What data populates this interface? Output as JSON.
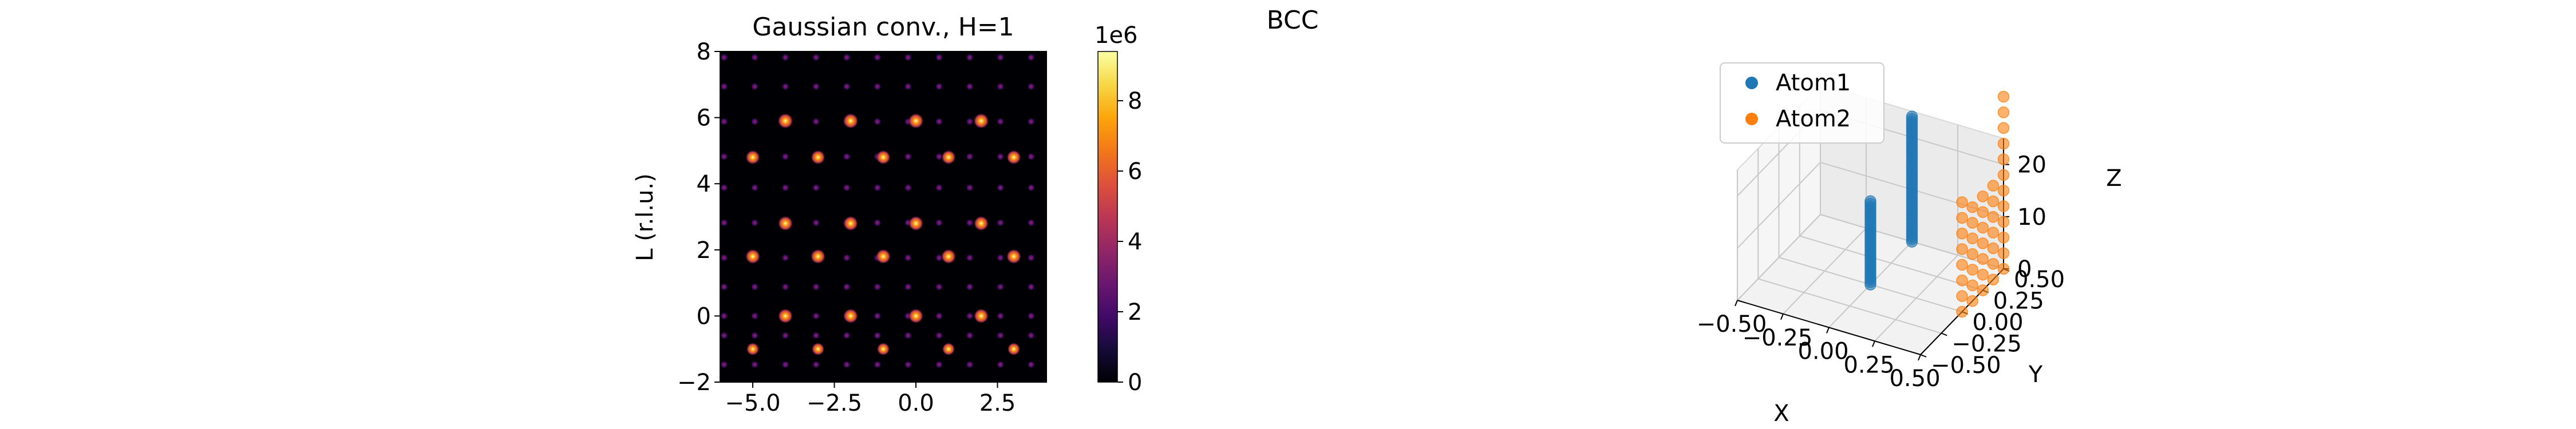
{
  "figure": {
    "suptitle": "BCC"
  },
  "chart_data": [
    {
      "type": "heatmap",
      "title": "Gaussian conv., H=1",
      "xlabel": "",
      "ylabel": "L (r.l.u.)",
      "xlim": [
        -6,
        4
      ],
      "ylim": [
        -2,
        8
      ],
      "xticks": [
        -5.0,
        -2.5,
        0.0,
        2.5
      ],
      "xtick_labels": [
        "−5.0",
        "−2.5",
        "0.0",
        "2.5"
      ],
      "yticks": [
        -2,
        0,
        2,
        4,
        6,
        8
      ],
      "ytick_labels": [
        "−2",
        "0",
        "2",
        "4",
        "6",
        "8"
      ],
      "colormap": "inferno",
      "colorbar": {
        "min": 0,
        "max": 9.4,
        "ticks": [
          0,
          2,
          4,
          6,
          8
        ],
        "tick_labels": [
          "0",
          "2",
          "4",
          "6",
          "8"
        ],
        "offset_label": "1e6"
      },
      "peak_columns_k": [
        -5.88,
        -4.94,
        -4.0,
        -3.06,
        -2.12,
        -1.18,
        -0.24,
        0.71,
        1.65,
        2.59,
        3.53
      ],
      "peak_rows_l": [
        -1.47,
        -0.59,
        0.0,
        0.88,
        1.76,
        2.82,
        3.88,
        4.82,
        5.88,
        6.94,
        7.82
      ],
      "bright_peaks": [
        {
          "x": -4.0,
          "y": 5.9,
          "value": 9.0
        },
        {
          "x": -2.0,
          "y": 5.9,
          "value": 9.0
        },
        {
          "x": 0.0,
          "y": 5.9,
          "value": 9.0
        },
        {
          "x": 2.0,
          "y": 5.9,
          "value": 9.0
        },
        {
          "x": -5.0,
          "y": 4.8,
          "value": 8.0
        },
        {
          "x": -3.0,
          "y": 4.8,
          "value": 8.0
        },
        {
          "x": -1.0,
          "y": 4.8,
          "value": 8.0
        },
        {
          "x": 1.0,
          "y": 4.8,
          "value": 8.0
        },
        {
          "x": 3.0,
          "y": 4.8,
          "value": 8.0
        },
        {
          "x": -4.0,
          "y": 2.8,
          "value": 8.5
        },
        {
          "x": -2.0,
          "y": 2.8,
          "value": 8.5
        },
        {
          "x": 0.0,
          "y": 2.8,
          "value": 8.5
        },
        {
          "x": 2.0,
          "y": 2.8,
          "value": 8.5
        },
        {
          "x": -5.0,
          "y": 1.8,
          "value": 8.5
        },
        {
          "x": -3.0,
          "y": 1.8,
          "value": 8.5
        },
        {
          "x": -1.0,
          "y": 1.8,
          "value": 8.5
        },
        {
          "x": 1.0,
          "y": 1.8,
          "value": 8.5
        },
        {
          "x": 3.0,
          "y": 1.8,
          "value": 8.5
        },
        {
          "x": -4.0,
          "y": 0.0,
          "value": 8.5
        },
        {
          "x": -2.0,
          "y": 0.0,
          "value": 8.5
        },
        {
          "x": 0.0,
          "y": 0.0,
          "value": 8.5
        },
        {
          "x": 2.0,
          "y": 0.0,
          "value": 8.5
        },
        {
          "x": -5.0,
          "y": -1.0,
          "value": 6.5
        },
        {
          "x": -3.0,
          "y": -1.0,
          "value": 6.5
        },
        {
          "x": -1.0,
          "y": -1.0,
          "value": 6.5
        },
        {
          "x": 1.0,
          "y": -1.0,
          "value": 6.5
        },
        {
          "x": 3.0,
          "y": -1.0,
          "value": 6.5
        }
      ]
    },
    {
      "type": "scatter3d",
      "title": "",
      "xlabel": "X",
      "ylabel": "Y",
      "zlabel": "Z",
      "xlim": [
        -0.5,
        0.5
      ],
      "ylim": [
        -0.5,
        0.5
      ],
      "zlim": [
        0,
        25
      ],
      "xticks": [
        -0.5,
        -0.25,
        0.0,
        0.25,
        0.5
      ],
      "xtick_labels": [
        "−0.50",
        "−0.25",
        "0.00",
        "0.25",
        "0.50"
      ],
      "yticks": [
        -0.5,
        -0.25,
        0.0,
        0.25,
        0.5
      ],
      "ytick_labels": [
        "−0.50",
        "−0.25",
        "0.00",
        "0.25",
        "0.50"
      ],
      "zticks": [
        0,
        10,
        20
      ],
      "ztick_labels": [
        "0",
        "10",
        "20"
      ],
      "legend_position": "upper-left",
      "series": [
        {
          "name": "Atom1",
          "color": "#1f77b4",
          "points": [
            {
              "x": 0.0,
              "y": 0.0,
              "z_values": [
                0,
                0.5,
                1,
                1.5,
                2,
                2.5,
                3,
                3.5,
                4,
                4.5,
                5,
                5.5,
                6,
                6.5,
                7,
                7.5,
                8,
                8.5,
                9,
                9.5,
                10,
                10.5,
                11,
                11.5,
                12,
                12.5,
                13,
                13.5,
                14,
                14.5,
                15,
                15.5,
                16
              ]
            },
            {
              "x": 0.0,
              "y": 0.5,
              "z_values": [
                0,
                0.5,
                1,
                1.5,
                2,
                2.5,
                3,
                3.5,
                4,
                4.5,
                5,
                5.5,
                6,
                6.5,
                7,
                7.5,
                8,
                8.5,
                9,
                9.5,
                10,
                10.5,
                11,
                11.5,
                12,
                12.5,
                13,
                13.5,
                14,
                14.5,
                15,
                15.5,
                16,
                16.5,
                17,
                17.5,
                18,
                18.5,
                19,
                19.5,
                20,
                20.5,
                21,
                21.5,
                22,
                22.5,
                23,
                23.5,
                24
              ]
            }
          ]
        },
        {
          "name": "Atom2",
          "color": "#ff7f0e",
          "points": [
            {
              "x": 0.5,
              "y": 0.0,
              "z_values": [
                0,
                3,
                6,
                9,
                12,
                15,
                18,
                21
              ]
            },
            {
              "x": 0.5,
              "y": 0.5,
              "z_values": [
                0,
                3,
                6,
                9,
                12,
                15,
                18,
                21,
                24,
                27,
                30,
                33
              ]
            },
            {
              "x": 0.5,
              "y": 0.25,
              "z_values": [
                0,
                3,
                6,
                9,
                12,
                15,
                18
              ]
            },
            {
              "x": 0.5,
              "y": 0.125,
              "z_values": [
                0,
                3,
                6,
                9,
                12,
                15,
                18
              ]
            },
            {
              "x": 0.5,
              "y": 0.375,
              "z_values": [
                0,
                3,
                6,
                9,
                12,
                15,
                18
              ]
            }
          ]
        }
      ]
    }
  ]
}
